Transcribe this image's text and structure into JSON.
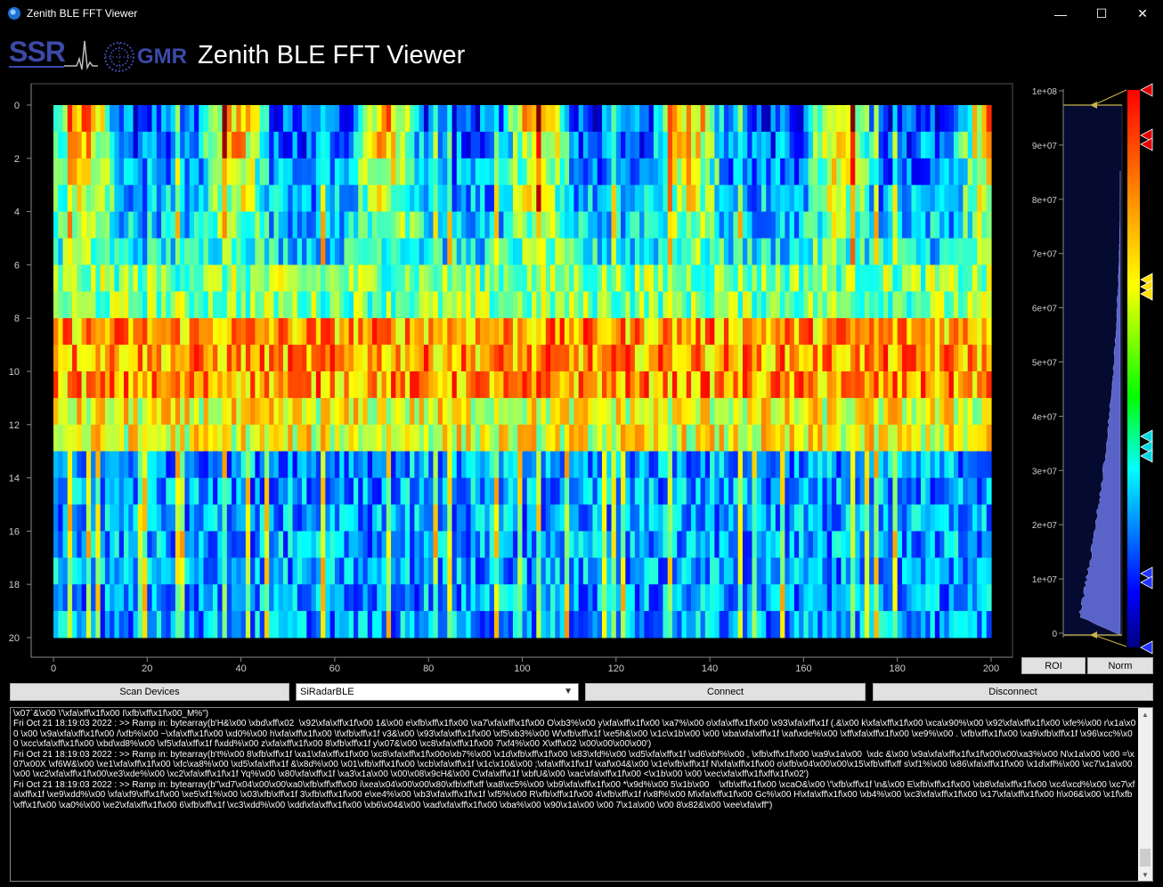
{
  "window": {
    "title": "Zenith BLE FFT Viewer",
    "minimize_glyph": "—",
    "maximize_glyph": "☐",
    "close_glyph": "✕"
  },
  "header": {
    "logo_ssr": "SSR",
    "logo_gmr": "GMR",
    "app_title": "Zenith BLE FFT Viewer"
  },
  "heatmap": {
    "x_ticks": [
      "0",
      "20",
      "40",
      "60",
      "80",
      "100",
      "120",
      "140",
      "160",
      "180",
      "200"
    ],
    "y_ticks": [
      "0",
      "2",
      "4",
      "6",
      "8",
      "10",
      "12",
      "14",
      "16",
      "18",
      "20"
    ],
    "colormap": "jet"
  },
  "histogram": {
    "ticks": [
      "1e+08",
      "9e+07",
      "8e+07",
      "7e+07",
      "6e+07",
      "5e+07",
      "4e+07",
      "3e+07",
      "2e+07",
      "1e+07",
      "0"
    ],
    "gradient_stop_colors": [
      "#ff0000",
      "#ffff00",
      "#00ff00",
      "#00ffff",
      "#0000ff",
      "#000080"
    ],
    "roi_label": "ROI",
    "norm_label": "Norm"
  },
  "controls": {
    "scan_label": "Scan Devices",
    "device_selected": "SiRadarBLE",
    "connect_label": "Connect",
    "disconnect_label": "Disconnect"
  },
  "log": {
    "lines": [
      "\\x07`&\\x00 \\'\\xfa\\xff\\x1f\\x00 I\\xfb\\xff\\x1f\\x00_M%\")",
      "Fri Oct 21 18:19:03 2022 : >> Ramp in: bytearray(b'H&\\x00 \\xbd\\xff\\x02  \\x92\\xfa\\xff\\x1f\\x00 1&\\x00 e\\xfb\\xff\\x1f\\x00 \\xa7\\xfa\\xff\\x1f\\x00 O\\xb3%\\x00 y\\xfa\\xff\\x1f\\x00 \\xa7%\\x00 o\\xfa\\xff\\x1f\\x00 \\x93\\xfa\\xff\\x1f (.&\\x00 k\\xfa\\xff\\x1f\\x00 \\xca\\x90%\\x00 \\x92\\xfa\\xff\\x1f\\x00 \\xfe%\\x00 r\\x1a\\x00 \\x00 \\x9a\\xfa\\xff\\x1f\\x00 /\\xfb%\\x00 ~\\xfa\\xff\\x1f\\x00 \\xd0%\\x00 h\\xfa\\xff\\x1f\\x00 \\t\\xfb\\xff\\x1f v3&\\x00 \\x93\\xfa\\xff\\x1f\\x00 \\xf5\\xb3%\\x00 W\\xfb\\xff\\x1f \\xe5h&\\x00 \\x1c\\x1b\\x00 \\x00 \\xba\\xfa\\xff\\x1f \\xaf\\xde%\\x00 \\xff\\xfa\\xff\\x1f\\x00 \\xe9%\\x00 . \\xfb\\xff\\x1f\\x00 \\xa9\\xfb\\xff\\x1f \\x96\\xcc%\\x00 \\xcc\\xfa\\xff\\x1f\\x00 \\xbd\\xd8%\\x00 \\xf5\\xfa\\xff\\x1f f\\xdd%\\x00 z\\xfa\\xff\\x1f\\x00 8\\xfb\\xff\\x1f y\\x07&\\x00 \\xc8\\xfa\\xff\\x1f\\x00 7\\xf4%\\x00 X\\xff\\x02 \\x00\\x00\\x00\\x00')",
      "Fri Oct 21 18:19:03 2022 : >> Ramp in: bytearray(b't%\\x00 8\\xfb\\xff\\x1f \\xa1\\xfa\\xff\\x1f\\x00 \\xc8\\xfa\\xff\\x1f\\x00o\\xb7%\\x00 \\x1d\\xfb\\xff\\x1f\\x00 \\x83\\xfd%\\x00 \\xd5\\xfa\\xff\\x1f \\xd6\\xbf%\\x00 , \\xfb\\xff\\x1f\\x00 \\xa9\\x1a\\x00  \\xdc &\\x00 \\x9a\\xfa\\xff\\x1f\\x1f\\x00\\x00\\xa3%\\x00 N\\x1a\\x00 \\x00 =\\x07\\x00X \\xf6W&\\x00 \\xe1\\xfa\\xff\\x1f\\x00 \\xfc\\xa8%\\x00 \\xd5\\xfa\\xff\\x1f &\\x8d%\\x00 \\x01\\xfb\\xff\\x1f\\x00 \\xcb\\xfa\\xff\\x1f \\x1c\\x10&\\x00 ;\\xfa\\xff\\x1f\\x1f \\xaf\\x04&\\x00 \\x1e\\xfb\\xff\\x1f N\\xfa\\xff\\x1f\\x00 o\\xfb\\x04\\x00\\x00\\x15\\xfb\\xff\\xff s\\xf1%\\x00 \\x86\\xfa\\xff\\x1f\\x00 \\x1d\\xff%\\x00 \\xc7\\x1a\\x00 \\x00 \\xc2\\xfa\\xff\\x1f\\x00\\xe3\\xde%\\x00 \\xc2\\xfa\\xff\\x1f\\x1f Yq%\\x00 \\x80\\xfa\\xff\\x1f \\xa3\\x1a\\x00 \\x00\\x08\\x9cH&\\x00 C\\xfa\\xff\\x1f \\xbfU&\\x00 \\xac\\xfa\\xff\\x1f\\x00 <\\x1b\\x00 \\x00 \\xec\\xfa\\xff\\x1f\\xff\\x1f\\x02')",
      "Fri Oct 21 18:19:03 2022 : >> Ramp in: bytearray(b\"\\xd7\\x04\\x00\\x00\\xa0\\xfb\\xff\\xff\\x00 i\\xea\\x04\\x00\\x00\\x80\\xfb\\xff\\xff \\xa8\\xc5%\\x00 \\xb9\\xfa\\xff\\x1f\\x00 *\\x9d%\\x00 5\\x1b\\x00    \\xfb\\xff\\x1f\\x00 \\xcaO&\\x00 \\'\\xfb\\xff\\x1f \\n&\\x00 E\\xfb\\xff\\x1f\\x00 \\xb8\\xfa\\xff\\x1f\\x00 \\xc4\\xcd%\\x00 \\xc7\\xfa\\xff\\x1f \\xe9\\xdd%\\x00 \\xfa\\xf9\\xff\\x1f\\x00 \\xe5\\xf1%\\x00 \\x03\\xfb\\xff\\x1f 3\\xfb\\xff\\x1f\\x00 e\\xe4%\\x00 \\xb3\\xfa\\xff\\x1f\\x1f \\xf5%\\x00 R\\xfb\\xff\\x1f\\x00 4\\xfb\\xff\\x1f r\\x8f%\\x00 M\\xfa\\xff\\x1f\\x00 Gc%\\x00 H\\xfa\\xff\\x1f\\x00 \\xb4%\\x00 \\xc3\\xfa\\xff\\x1f\\x00 \\x17\\xfa\\xff\\x1f\\x00 h\\x06&\\x00 \\x1f\\xfb\\xff\\x1f\\x00 \\xa0%\\x00 \\xe2\\xfa\\xff\\x1f\\x00 6\\xfb\\xff\\x1f \\xc3\\xdd%\\x00 \\xdd\\xfa\\xff\\x1f\\x00 \\xb6\\x04&\\x00 \\xad\\xfa\\xff\\x1f\\x00 \\xba%\\x00 \\x90\\x1a\\x00 \\x00 7\\x1a\\x00 \\x00 8\\x82&\\x00 \\xee\\xfa\\xff\")"
    ]
  }
}
